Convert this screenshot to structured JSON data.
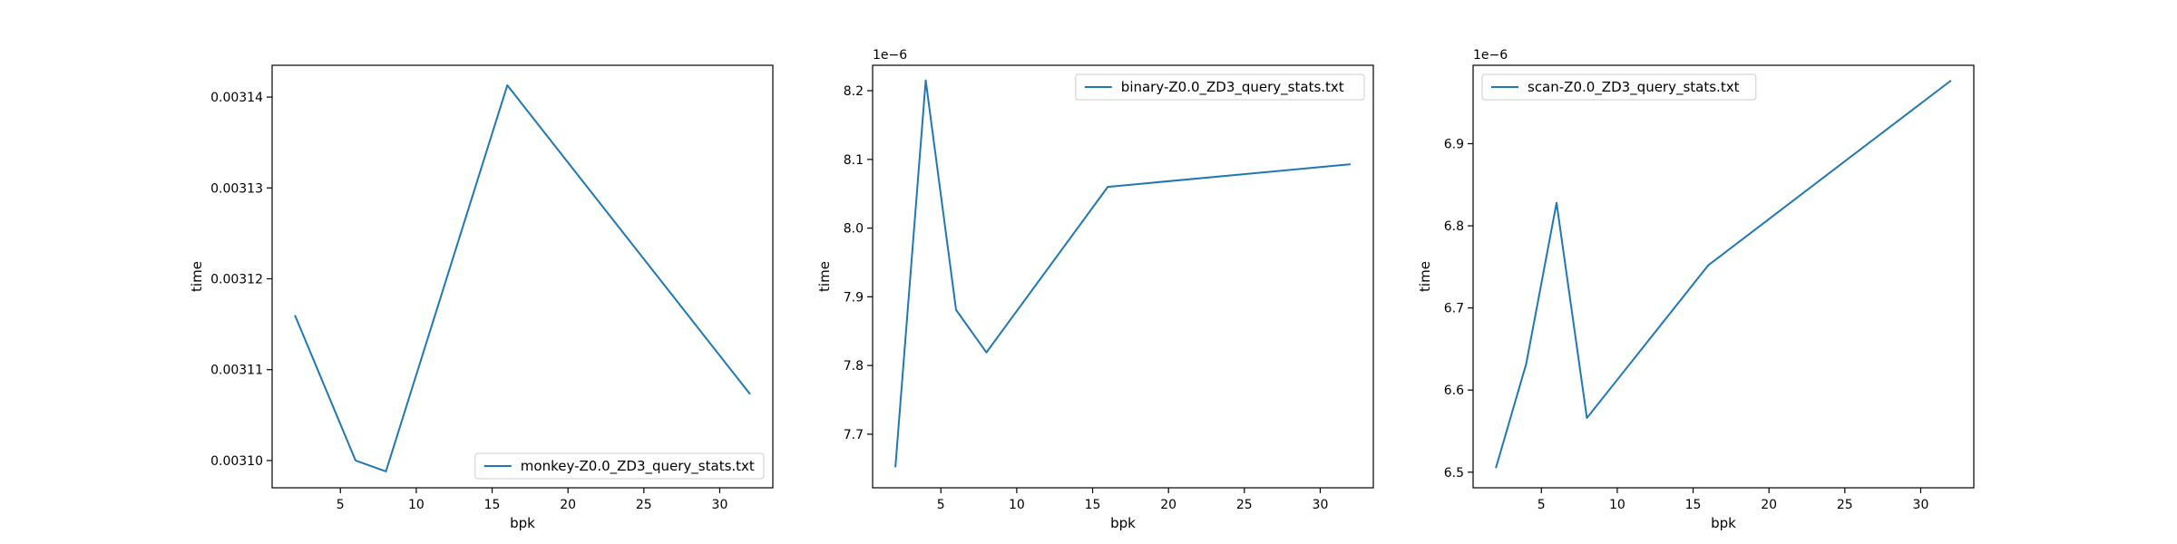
{
  "chart_data": [
    {
      "type": "line",
      "xlabel": "bpk",
      "ylabel": "time",
      "y_offset_label": "",
      "xlim": [
        0.5,
        33.5
      ],
      "ylim": [
        0.003097,
        0.0031435
      ],
      "xticks": [
        5,
        10,
        15,
        20,
        25,
        30
      ],
      "yticks": [
        0.0031,
        0.00311,
        0.00312,
        0.00313,
        0.00314
      ],
      "ytick_labels": [
        "0.00310",
        "0.00311",
        "0.00312",
        "0.00313",
        "0.00314"
      ],
      "legend_position": "lower-right",
      "grid": false,
      "series": [
        {
          "name": "monkey-Z0.0_ZD3_query_stats.txt",
          "color": "#1f77b4",
          "x": [
            2,
            6,
            8,
            16,
            32
          ],
          "y": [
            0.003116,
            0.0031,
            0.0030988,
            0.0031413,
            0.0031073
          ]
        }
      ]
    },
    {
      "type": "line",
      "xlabel": "bpk",
      "ylabel": "time",
      "y_offset_label": "1e−6",
      "xlim": [
        0.5,
        33.5
      ],
      "ylim": [
        7.622,
        8.237
      ],
      "xticks": [
        5,
        10,
        15,
        20,
        25,
        30
      ],
      "yticks": [
        7.7,
        7.8,
        7.9,
        8.0,
        8.1,
        8.2
      ],
      "ytick_labels": [
        "7.7",
        "7.8",
        "7.9",
        "8.0",
        "8.1",
        "8.2"
      ],
      "legend_position": "upper-right",
      "grid": false,
      "series": [
        {
          "name": "binary-Z0.0_ZD3_query_stats.txt",
          "color": "#1f77b4",
          "x": [
            2,
            4,
            6,
            8,
            16,
            32
          ],
          "y": [
            7.652,
            8.215,
            7.881,
            7.819,
            8.06,
            8.093
          ]
        }
      ]
    },
    {
      "type": "line",
      "xlabel": "bpk",
      "ylabel": "time",
      "y_offset_label": "1e−6",
      "xlim": [
        0.5,
        33.5
      ],
      "ylim": [
        6.481,
        6.9955
      ],
      "xticks": [
        5,
        10,
        15,
        20,
        25,
        30
      ],
      "yticks": [
        6.5,
        6.6,
        6.7,
        6.8,
        6.9
      ],
      "ytick_labels": [
        "6.5",
        "6.6",
        "6.7",
        "6.8",
        "6.9"
      ],
      "legend_position": "upper-left",
      "grid": false,
      "series": [
        {
          "name": "scan-Z0.0_ZD3_query_stats.txt",
          "color": "#1f77b4",
          "x": [
            2,
            4,
            6,
            8,
            16,
            32
          ],
          "y": [
            6.505,
            6.632,
            6.828,
            6.566,
            6.752,
            6.977
          ]
        }
      ]
    }
  ]
}
